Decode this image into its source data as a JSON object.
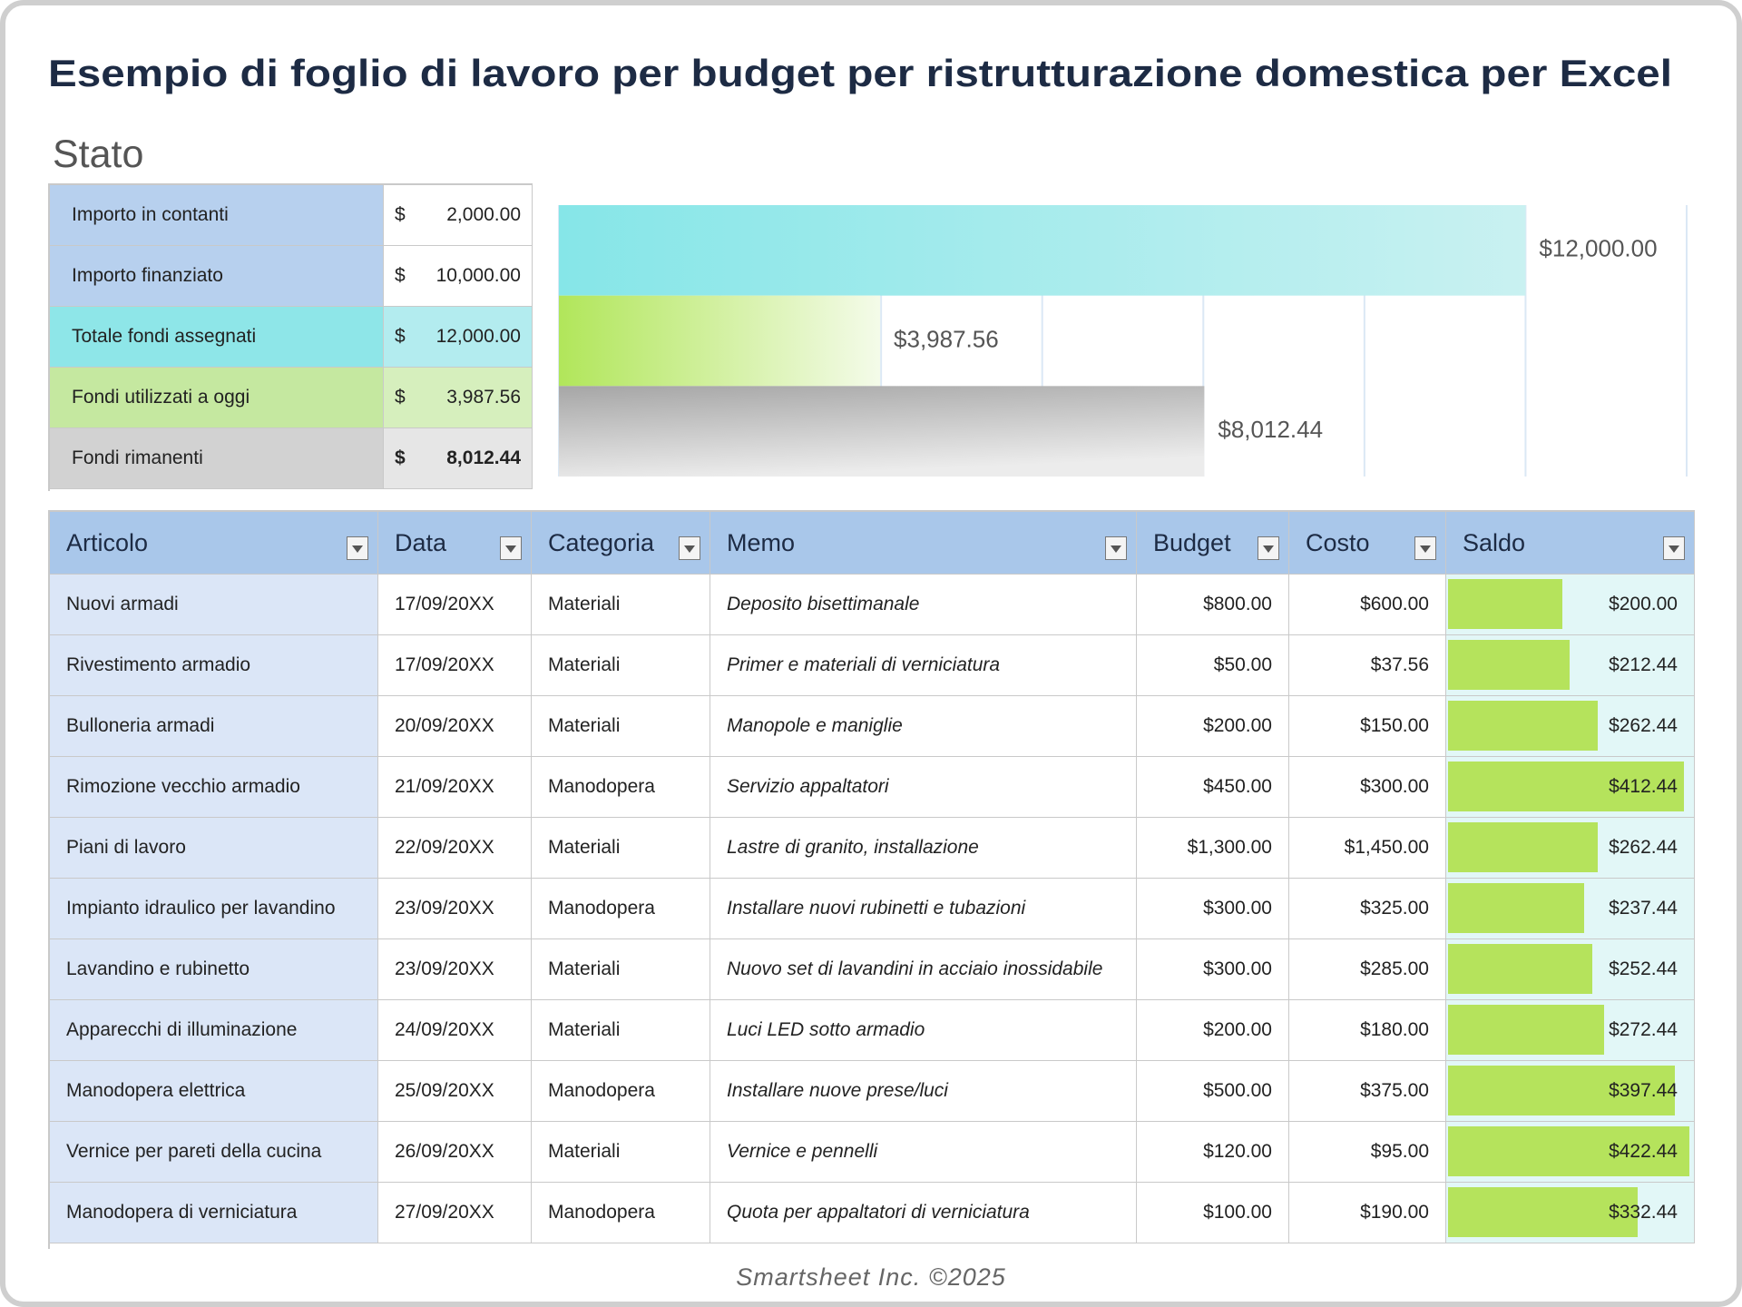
{
  "title": "Esempio di foglio di lavoro per budget per ristrutturazione domestica per Excel",
  "status": {
    "heading": "Stato",
    "rows": [
      {
        "label": "Importo in contanti",
        "currency": "$",
        "amount": "2,000.00"
      },
      {
        "label": "Importo finanziato",
        "currency": "$",
        "amount": "10,000.00"
      },
      {
        "label": "Totale fondi assegnati",
        "currency": "$",
        "amount": "12,000.00"
      },
      {
        "label": "Fondi utilizzati a oggi",
        "currency": "$",
        "amount": "3,987.56"
      },
      {
        "label": "Fondi rimanenti",
        "currency": "$",
        "amount": "8,012.44"
      }
    ]
  },
  "status_chart": {
    "type": "bar",
    "orientation": "horizontal",
    "values": [
      12000,
      3987.56,
      8012.44
    ],
    "value_labels": [
      "$12,000.00",
      "$3,987.56",
      "$8,012.44"
    ],
    "colors": [
      "#86e6e8",
      "#b1e65a",
      "#a6a6a6"
    ],
    "xlim": [
      0,
      14000
    ],
    "xticks": [
      0,
      2000,
      4000,
      6000,
      8000,
      10000,
      12000,
      14000
    ],
    "grid": true
  },
  "table": {
    "headers": [
      "Articolo",
      "Data",
      "Categoria",
      "Memo",
      "Budget",
      "Costo",
      "Saldo"
    ],
    "rows": [
      [
        "Nuovi armadi",
        "17/09/20XX",
        "Materiali",
        "Deposito bisettimanale",
        "$800.00",
        "$600.00",
        {
          "value": 200,
          "label": "$200.00"
        }
      ],
      [
        "Rivestimento armadio",
        "17/09/20XX",
        "Materiali",
        "Primer e materiali di verniciatura",
        "$50.00",
        "$37.56",
        {
          "value": 212.44,
          "label": "$212.44"
        }
      ],
      [
        "Bulloneria armadi",
        "20/09/20XX",
        "Materiali",
        "Manopole e maniglie",
        "$200.00",
        "$150.00",
        {
          "value": 262.44,
          "label": "$262.44"
        }
      ],
      [
        "Rimozione vecchio armadio",
        "21/09/20XX",
        "Manodopera",
        "Servizio appaltatori",
        "$450.00",
        "$300.00",
        {
          "value": 412.44,
          "label": "$412.44"
        }
      ],
      [
        "Piani di lavoro",
        "22/09/20XX",
        "Materiali",
        "Lastre di granito, installazione",
        "$1,300.00",
        "$1,450.00",
        {
          "value": 262.44,
          "label": "$262.44"
        }
      ],
      [
        "Impianto idraulico per lavandino",
        "23/09/20XX",
        "Manodopera",
        "Installare nuovi rubinetti e tubazioni",
        "$300.00",
        "$325.00",
        {
          "value": 237.44,
          "label": "$237.44"
        }
      ],
      [
        "Lavandino e rubinetto",
        "23/09/20XX",
        "Materiali",
        "Nuovo set di lavandini in acciaio inossidabile",
        "$300.00",
        "$285.00",
        {
          "value": 252.44,
          "label": "$252.44"
        }
      ],
      [
        "Apparecchi di illuminazione",
        "24/09/20XX",
        "Materiali",
        "Luci LED sotto armadio",
        "$200.00",
        "$180.00",
        {
          "value": 272.44,
          "label": "$272.44"
        }
      ],
      [
        "Manodopera elettrica",
        "25/09/20XX",
        "Manodopera",
        "Installare nuove prese/luci",
        "$500.00",
        "$375.00",
        {
          "value": 397.44,
          "label": "$397.44"
        }
      ],
      [
        "Vernice per pareti della cucina",
        "26/09/20XX",
        "Materiali",
        "Vernice e pennelli",
        "$120.00",
        "$95.00",
        {
          "value": 422.44,
          "label": "$422.44"
        }
      ],
      [
        "Manodopera di verniciatura",
        "27/09/20XX",
        "Manodopera",
        "Quota per appaltatori di verniciatura",
        "$100.00",
        "$190.00",
        {
          "value": 332.44,
          "label": "$332.44"
        }
      ]
    ]
  },
  "footer": "Smartsheet Inc. ©2025"
}
